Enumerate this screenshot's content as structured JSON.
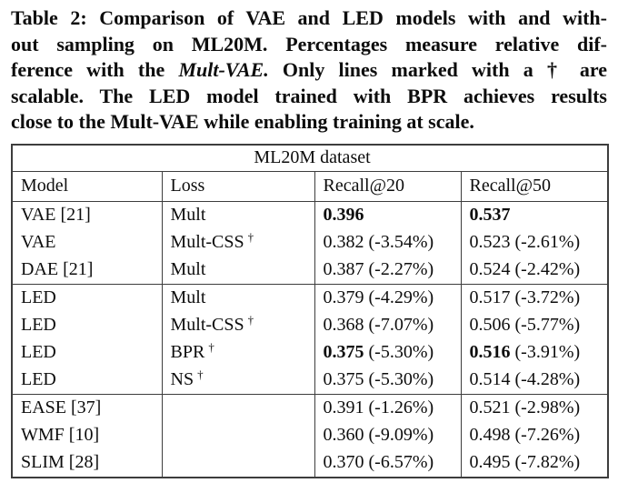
{
  "caption": {
    "line1": "Table 2: Comparison of VAE and LED models with and with-",
    "line2": "out sampling on ML20M. Percentages measure relative dif-",
    "line3_pre": "ference with the ",
    "line3_italic": "Mult-VAE.",
    "line3_post": " Only lines marked with a † are",
    "line4": "scalable. The LED model trained with BPR achieves results",
    "line5": "close to the Mult-VAE while enabling training at scale."
  },
  "table": {
    "title": "ML20M dataset",
    "columns": [
      "Model",
      "Loss",
      "Recall@20",
      "Recall@50"
    ],
    "rows": [
      {
        "model": "VAE [21]",
        "loss": "Mult",
        "dagger": "",
        "r20": "0.396",
        "r20pct": "",
        "r50": "0.537",
        "r50pct": ""
      },
      {
        "model": "VAE",
        "loss": "Mult-CSS",
        "dagger": "†",
        "r20": "0.382",
        "r20pct": "(-3.54%)",
        "r50": "0.523",
        "r50pct": "(-2.61%)"
      },
      {
        "model": "DAE [21]",
        "loss": "Mult",
        "dagger": "",
        "r20": "0.387",
        "r20pct": "(-2.27%)",
        "r50": "0.524",
        "r50pct": "(-2.42%)"
      },
      {
        "model": "LED",
        "loss": "Mult",
        "dagger": "",
        "r20": "0.379",
        "r20pct": "(-4.29%)",
        "r50": "0.517",
        "r50pct": "(-3.72%)"
      },
      {
        "model": "LED",
        "loss": "Mult-CSS",
        "dagger": "†",
        "r20": "0.368",
        "r20pct": "(-7.07%)",
        "r50": "0.506",
        "r50pct": "(-5.77%)"
      },
      {
        "model": "LED",
        "loss": "BPR",
        "dagger": "†",
        "r20": "0.375",
        "r20pct": "(-5.30%)",
        "r50": "0.516",
        "r50pct": "(-3.91%)"
      },
      {
        "model": "LED",
        "loss": "NS",
        "dagger": "†",
        "r20": "0.375",
        "r20pct": "(-5.30%)",
        "r50": "0.514",
        "r50pct": "(-4.28%)"
      },
      {
        "model": "EASE [37]",
        "loss": "",
        "dagger": "",
        "r20": "0.391",
        "r20pct": "(-1.26%)",
        "r50": "0.521",
        "r50pct": "(-2.98%)"
      },
      {
        "model": "WMF [10]",
        "loss": "",
        "dagger": "",
        "r20": "0.360",
        "r20pct": "(-9.09%)",
        "r50": "0.498",
        "r50pct": "(-7.26%)"
      },
      {
        "model": "SLIM [28]",
        "loss": "",
        "dagger": "",
        "r20": "0.370",
        "r20pct": "(-6.57%)",
        "r50": "0.495",
        "r50pct": "(-7.82%)"
      }
    ]
  },
  "colors": {
    "text": "#111111",
    "border": "#3d3d3d",
    "background": "#ffffff"
  }
}
